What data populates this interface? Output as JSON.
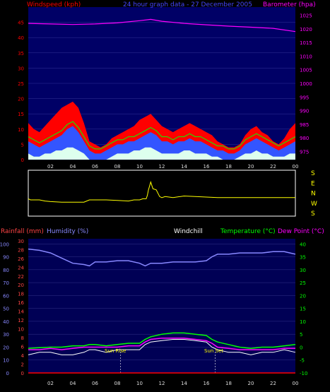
{
  "titles": {
    "windspeed": "Windspeed (kph)",
    "graph_title": "24 hour graph data - 27 December 2005",
    "barometer": "Barometer (hpa)",
    "rainfall": "Rainfall (mm)",
    "humidity": "Humidity (%)",
    "windchill": "Windchill",
    "temperature": "Temperature (°C)",
    "dewpoint": "Dew Point (°C)",
    "sun_rise": "Sun Rise",
    "sun_set": "Sun Set"
  },
  "colors": {
    "red": "#ff0000",
    "blue": "#4444ff",
    "magenta": "#ff00ff",
    "green": "#00ff00",
    "yellow": "#ffff00",
    "white": "#ffffff",
    "lightblue": "#8888ff",
    "panel_top": "#000066",
    "panel_bottom": "#000055"
  },
  "x_hours": [
    "02",
    "04",
    "06",
    "08",
    "10",
    "12",
    "14",
    "16",
    "18",
    "20",
    "22",
    "00"
  ],
  "directions": [
    "S",
    "E",
    "N",
    "W",
    "S"
  ],
  "chart_data": [
    {
      "type": "area",
      "name": "windspeed-barometer",
      "title": "24 hour graph data - 27 December 2005",
      "x_ticks": [
        "02",
        "04",
        "06",
        "08",
        "10",
        "12",
        "14",
        "16",
        "18",
        "20",
        "22",
        "00"
      ],
      "y_left_ticks": [
        "0",
        "5",
        "10",
        "15",
        "20",
        "25",
        "30",
        "35",
        "40",
        "45"
      ],
      "y_left_range": [
        0,
        50
      ],
      "y_right_ticks": [
        "975",
        "980",
        "985",
        "990",
        "995",
        "1000",
        "1005",
        "1010",
        "1015",
        "1020",
        "1025"
      ],
      "y_right_range": [
        972,
        1028
      ],
      "x_range": [
        0,
        24
      ],
      "windspeed_gust_x": [
        0,
        0.5,
        1,
        1.5,
        2,
        2.5,
        3,
        3.5,
        4,
        4.5,
        5,
        5.5,
        6,
        6.5,
        7,
        7.5,
        8,
        8.5,
        9,
        9.5,
        10,
        10.5,
        11,
        11.5,
        12,
        12.5,
        13,
        13.5,
        14,
        14.5,
        15,
        15.5,
        16,
        16.5,
        17,
        17.5,
        18,
        18.5,
        19,
        19.5,
        20,
        20.5,
        21,
        21.5,
        22,
        22.5,
        23,
        23.5,
        24
      ],
      "windspeed_gust": [
        12,
        10,
        9,
        11,
        13,
        15,
        17,
        18,
        19,
        17,
        12,
        6,
        5,
        4,
        5,
        7,
        8,
        9,
        10,
        11,
        13,
        14,
        15,
        13,
        11,
        10,
        9,
        10,
        11,
        12,
        11,
        10,
        9,
        8,
        6,
        5,
        4,
        4,
        5,
        8,
        10,
        11,
        9,
        8,
        6,
        5,
        7,
        10,
        12
      ],
      "windspeed_avg": [
        6,
        5,
        4,
        5,
        6,
        7,
        8,
        10,
        11,
        9,
        6,
        3,
        2,
        2,
        3,
        4,
        5,
        5,
        6,
        6,
        7,
        8,
        9,
        8,
        6,
        6,
        5,
        6,
        6,
        7,
        6,
        6,
        5,
        4,
        3,
        3,
        2,
        2,
        3,
        5,
        6,
        7,
        6,
        5,
        4,
        3,
        4,
        5,
        6
      ],
      "windspeed_min": [
        2,
        1,
        1,
        2,
        2,
        3,
        3,
        4,
        4,
        3,
        2,
        0,
        0,
        0,
        0,
        1,
        2,
        2,
        2,
        3,
        3,
        4,
        4,
        3,
        2,
        2,
        2,
        2,
        3,
        3,
        2,
        2,
        2,
        1,
        1,
        0,
        0,
        0,
        1,
        2,
        2,
        3,
        2,
        2,
        1,
        1,
        1,
        2,
        2
      ],
      "barometer_x": [
        0,
        2,
        4,
        6,
        8,
        10,
        11,
        12,
        14,
        16,
        18,
        20,
        22,
        24
      ],
      "barometer": [
        1022.0,
        1021.8,
        1021.6,
        1021.8,
        1022.2,
        1023.0,
        1023.5,
        1022.8,
        1022.0,
        1021.5,
        1021.0,
        1020.6,
        1020.2,
        1019.0
      ]
    },
    {
      "type": "line",
      "name": "wind-direction",
      "x_ticks": [
        "02",
        "04",
        "06",
        "08",
        "10",
        "12",
        "14",
        "16",
        "18",
        "20",
        "22",
        "00"
      ],
      "y_ticks": [
        "S",
        "E",
        "N",
        "W",
        "S"
      ],
      "x_range": [
        0,
        24
      ],
      "direction_x": [
        0,
        0.2,
        1,
        1.5,
        2,
        3,
        4,
        5,
        5.5,
        6,
        7,
        8,
        9,
        9.5,
        10,
        10.3,
        10.6,
        10.7,
        10.8,
        11,
        11.2,
        11.5,
        11.8,
        12,
        12.3,
        13,
        14,
        15,
        16,
        17,
        18,
        19,
        20,
        21,
        22,
        23,
        24
      ],
      "direction_value": [
        310,
        300,
        300,
        290,
        285,
        280,
        280,
        280,
        300,
        300,
        300,
        295,
        290,
        300,
        300,
        310,
        310,
        340,
        30,
        100,
        40,
        30,
        330,
        320,
        330,
        320,
        335,
        330,
        325,
        320,
        320,
        320,
        320,
        320,
        320,
        320,
        320
      ]
    },
    {
      "type": "line",
      "name": "rain-humidity-temperature",
      "x_ticks": [
        "02",
        "04",
        "06",
        "08",
        "10",
        "12",
        "14",
        "16",
        "18",
        "20",
        "22",
        "00"
      ],
      "y_left_ticks_humidity": [
        "0",
        "10",
        "20",
        "30",
        "40",
        "50",
        "60",
        "70",
        "80",
        "90",
        "100"
      ],
      "y_left_ticks_rain": [
        "0",
        "2",
        "4",
        "6",
        "8",
        "10",
        "12",
        "14",
        "16",
        "18",
        "20",
        "22",
        "24",
        "26",
        "28",
        "30"
      ],
      "y_right_ticks": [
        "-10",
        "-5",
        "0",
        "5",
        "10",
        "15",
        "20",
        "25",
        "30",
        "35",
        "40"
      ],
      "humidity_range": [
        0,
        104
      ],
      "temperature_range": [
        -10,
        42
      ],
      "x_range": [
        0,
        24
      ],
      "x": [
        0,
        1,
        2,
        3,
        4,
        5,
        5.5,
        6,
        7,
        8,
        9,
        10,
        10.5,
        11,
        12,
        13,
        14,
        15,
        16,
        16.5,
        17,
        18,
        19,
        20,
        21,
        22,
        23,
        24
      ],
      "humidity": [
        96,
        95,
        93,
        89,
        85,
        84,
        83,
        86,
        86,
        87,
        87,
        85,
        83,
        85,
        85,
        86,
        86,
        86,
        87,
        90,
        92,
        92,
        93,
        93,
        93,
        94,
        94,
        92
      ],
      "temperature": [
        -0.5,
        -0.2,
        0,
        0,
        0.5,
        0.5,
        1,
        1,
        0.5,
        1,
        1.5,
        1.5,
        3,
        4,
        5,
        5.5,
        5.5,
        5,
        4.5,
        3,
        2,
        1,
        0,
        -0.5,
        0,
        0,
        0.5,
        1
      ],
      "dewpoint": [
        -1,
        -1,
        -0.5,
        -1,
        -0.5,
        0,
        0,
        0,
        0,
        0,
        0.5,
        0.5,
        2,
        3,
        3.5,
        3.5,
        3.5,
        3,
        2.5,
        1.5,
        0,
        -0.5,
        -1,
        -1,
        -1,
        -1,
        -0.5,
        -0.5
      ],
      "windchill": [
        -3,
        -2,
        -2,
        -3,
        -3,
        -2,
        -1,
        -1,
        -2,
        -1,
        -1,
        -1,
        1,
        2,
        2.5,
        3,
        3,
        2.5,
        2,
        0,
        -1,
        -2,
        -2,
        -3,
        -2,
        -2,
        -1,
        -2
      ],
      "rainfall": [
        0,
        0,
        0,
        0,
        0,
        0,
        0,
        0,
        0,
        0,
        0,
        0,
        0,
        0,
        0,
        0,
        0,
        0,
        0,
        0,
        0,
        0,
        0,
        0,
        0,
        0,
        0,
        0
      ],
      "sun_rise_hour": 8.3,
      "sun_set_hour": 16.8
    }
  ]
}
